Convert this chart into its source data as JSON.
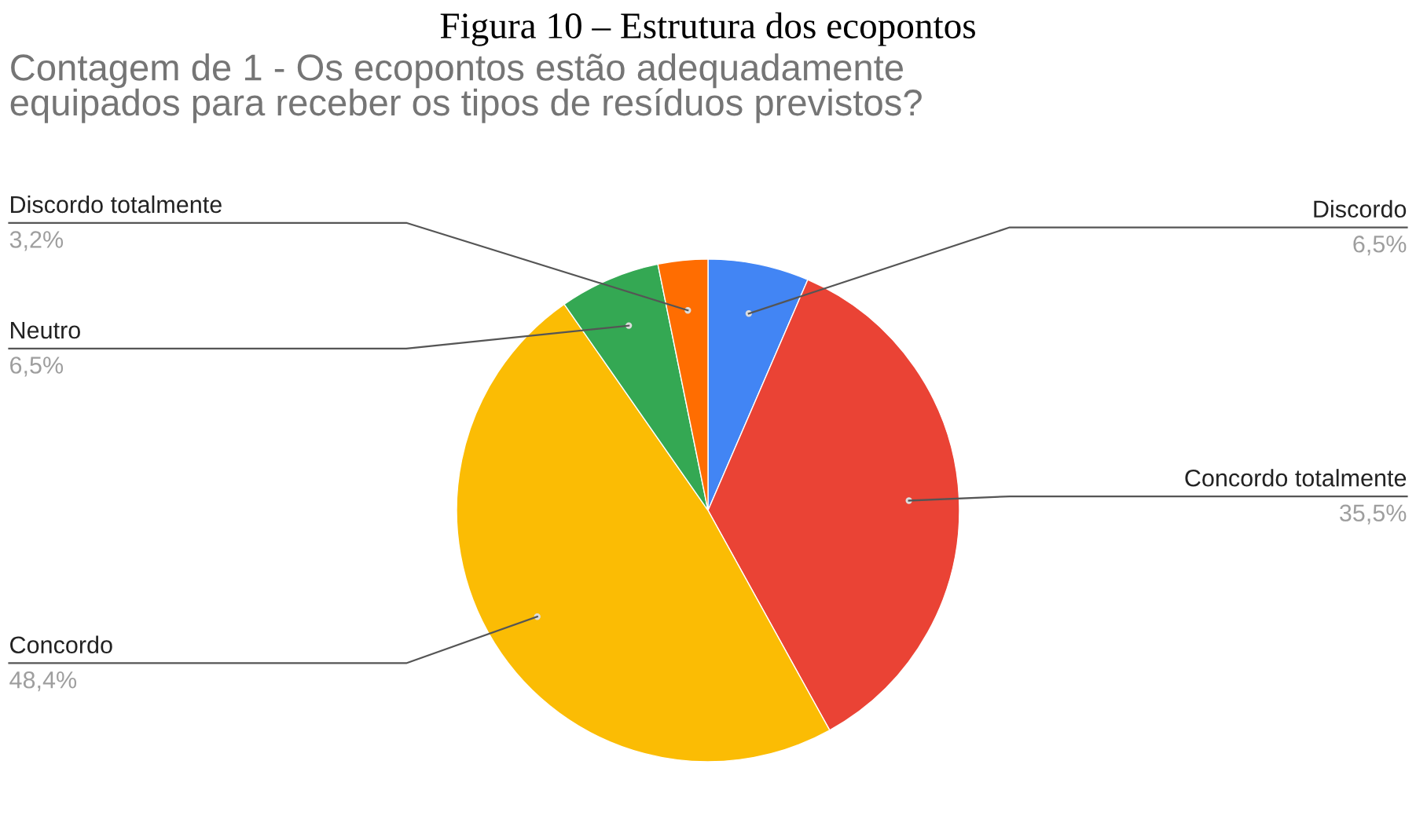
{
  "chart_data": {
    "type": "pie",
    "title": "Figura 10 – Estrutura dos ecopontos",
    "subtitle": "Contagem de 1 - Os ecopontos estão adequadamente\nequipados para receber os tipos de resíduos previstos?",
    "categories": [
      "Discordo",
      "Concordo totalmente",
      "Concordo",
      "Neutro",
      "Discordo totalmente"
    ],
    "values": [
      6.5,
      35.5,
      48.4,
      6.5,
      3.2
    ],
    "value_labels": [
      "6,5%",
      "35,5%",
      "48,4%",
      "6,5%",
      "3,2%"
    ],
    "colors": [
      "#4285f4",
      "#ea4335",
      "#fbbc04",
      "#34a853",
      "#ff6d01"
    ]
  }
}
